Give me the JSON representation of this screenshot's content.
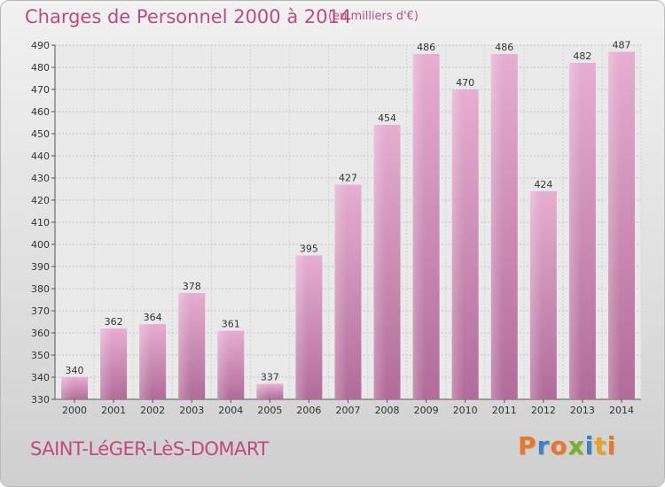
{
  "header": {
    "title": "Charges de Personnel 2000 à 2014",
    "unit": "(en milliers d'€)"
  },
  "footer": {
    "commune": "SAINT-LéGER-LèS-DOMART",
    "brand": "Proxiti"
  },
  "colors": {
    "accent": "#c0497f",
    "bar": "#d58fb6",
    "brand_letters": [
      "#e8772e",
      "#3f7fc2",
      "#e8772e",
      "#7cae2c",
      "#3f7fc2",
      "#e4a520",
      "#e8772e"
    ]
  },
  "chart_data": {
    "type": "bar",
    "title": "Charges de Personnel 2000 à 2014",
    "subtitle": "(en milliers d'€)",
    "categories": [
      "2000",
      "2001",
      "2002",
      "2003",
      "2004",
      "2005",
      "2006",
      "2007",
      "2008",
      "2009",
      "2010",
      "2011",
      "2012",
      "2013",
      "2014"
    ],
    "values": [
      340,
      362,
      364,
      378,
      361,
      337,
      395,
      427,
      454,
      486,
      470,
      486,
      424,
      482,
      487
    ],
    "ylim": [
      330,
      490
    ],
    "yticks": [
      330,
      340,
      350,
      360,
      370,
      380,
      390,
      400,
      410,
      420,
      430,
      440,
      450,
      460,
      470,
      480,
      490
    ],
    "grid": true,
    "xlabel": "",
    "ylabel": ""
  }
}
